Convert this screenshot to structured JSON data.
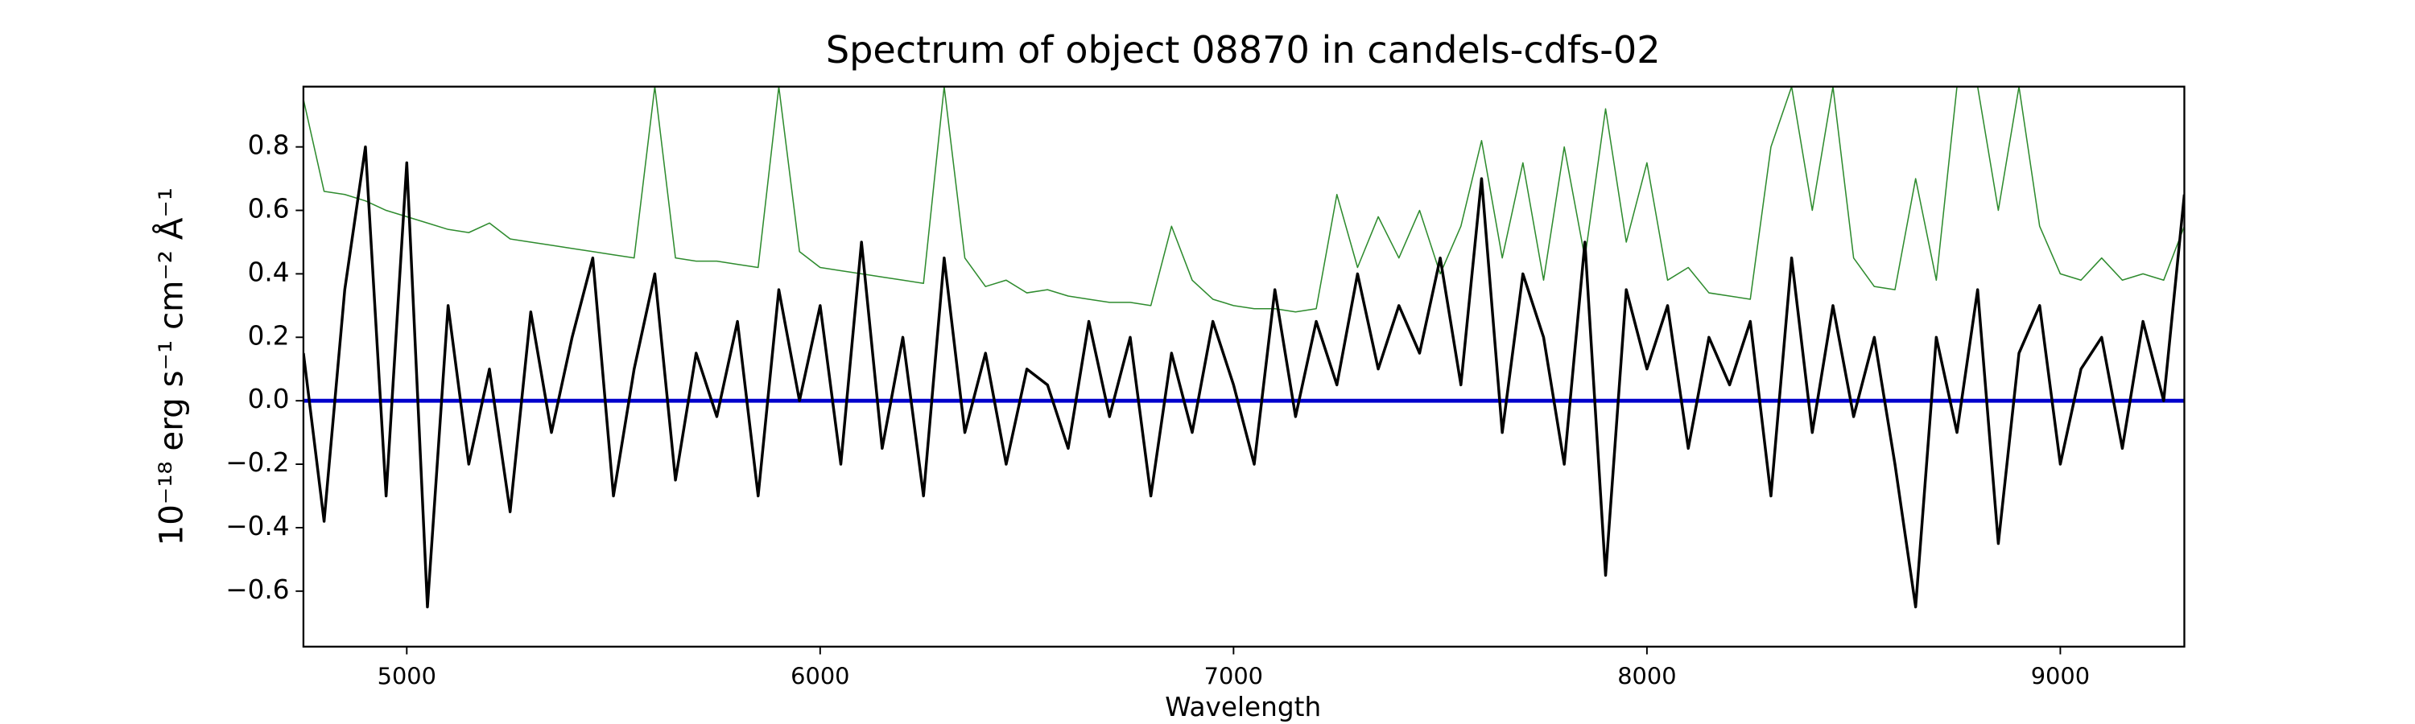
{
  "chart_data": {
    "type": "line",
    "title": "Spectrum of object 08870 in candels-cdfs-02",
    "xlabel": "Wavelength",
    "ylabel": "10⁻¹⁸ erg s⁻¹ cm⁻² Å⁻¹",
    "x": [
      4750,
      4800,
      4850,
      4900,
      4950,
      5000,
      5050,
      5100,
      5150,
      5200,
      5250,
      5300,
      5350,
      5400,
      5450,
      5500,
      5550,
      5600,
      5650,
      5700,
      5750,
      5800,
      5850,
      5900,
      5950,
      6000,
      6050,
      6100,
      6150,
      6200,
      6250,
      6300,
      6350,
      6400,
      6450,
      6500,
      6550,
      6600,
      6650,
      6700,
      6750,
      6800,
      6850,
      6900,
      6950,
      7000,
      7050,
      7100,
      7150,
      7200,
      7250,
      7300,
      7350,
      7400,
      7450,
      7500,
      7550,
      7600,
      7650,
      7700,
      7750,
      7800,
      7850,
      7900,
      7950,
      8000,
      8050,
      8100,
      8150,
      8200,
      8250,
      8300,
      8350,
      8400,
      8450,
      8500,
      8550,
      8600,
      8650,
      8700,
      8750,
      8800,
      8850,
      8900,
      8950,
      9000,
      9050,
      9100,
      9150,
      9200,
      9250,
      9300
    ],
    "series": [
      {
        "color": "#2e8b2e",
        "width": 0.8,
        "values": [
          0.95,
          0.66,
          0.65,
          0.63,
          0.6,
          0.58,
          0.56,
          0.54,
          0.53,
          0.56,
          0.51,
          0.5,
          0.49,
          0.48,
          0.47,
          0.46,
          0.45,
          0.99,
          0.45,
          0.44,
          0.44,
          0.43,
          0.42,
          0.99,
          0.47,
          0.42,
          0.41,
          0.4,
          0.39,
          0.38,
          0.37,
          0.99,
          0.45,
          0.36,
          0.38,
          0.34,
          0.35,
          0.33,
          0.32,
          0.31,
          0.31,
          0.3,
          0.55,
          0.38,
          0.32,
          0.3,
          0.29,
          0.29,
          0.28,
          0.29,
          0.65,
          0.42,
          0.58,
          0.45,
          0.6,
          0.4,
          0.55,
          0.82,
          0.45,
          0.75,
          0.38,
          0.8,
          0.45,
          0.92,
          0.5,
          0.75,
          0.38,
          0.42,
          0.34,
          0.33,
          0.32,
          0.8,
          0.99,
          0.6,
          0.99,
          0.45,
          0.36,
          0.35,
          0.7,
          0.38,
          0.99,
          0.99,
          0.6,
          0.99,
          0.55,
          0.4,
          0.38,
          0.45,
          0.38,
          0.4,
          0.38,
          0.55
        ]
      },
      {
        "color": "#0000cc",
        "width": 2.5,
        "values": [
          0,
          0,
          0,
          0,
          0,
          0,
          0,
          0,
          0,
          0,
          0,
          0,
          0,
          0,
          0,
          0,
          0,
          0,
          0,
          0,
          0,
          0,
          0,
          0,
          0,
          0,
          0,
          0,
          0,
          0,
          0,
          0,
          0,
          0,
          0,
          0,
          0,
          0,
          0,
          0,
          0,
          0,
          0,
          0,
          0,
          0,
          0,
          0,
          0,
          0,
          0,
          0,
          0,
          0,
          0,
          0,
          0,
          0,
          0,
          0,
          0,
          0,
          0,
          0,
          0,
          0,
          0,
          0,
          0,
          0,
          0,
          0,
          0,
          0,
          0,
          0,
          0,
          0,
          0,
          0,
          0,
          0,
          0,
          0,
          0,
          0,
          0,
          0,
          0,
          0,
          0,
          0
        ]
      },
      {
        "color": "#000000",
        "width": 1.8,
        "values": [
          0.15,
          -0.38,
          0.35,
          0.8,
          -0.3,
          0.75,
          -0.65,
          0.3,
          -0.2,
          0.1,
          -0.35,
          0.28,
          -0.1,
          0.2,
          0.45,
          -0.3,
          0.1,
          0.4,
          -0.25,
          0.15,
          -0.05,
          0.25,
          -0.3,
          0.35,
          0,
          0.3,
          -0.2,
          0.5,
          -0.15,
          0.2,
          -0.3,
          0.45,
          -0.1,
          0.15,
          -0.2,
          0.1,
          0.05,
          -0.15,
          0.25,
          -0.05,
          0.2,
          -0.3,
          0.15,
          -0.1,
          0.25,
          0.05,
          -0.2,
          0.35,
          -0.05,
          0.25,
          0.05,
          0.4,
          0.1,
          0.3,
          0.15,
          0.45,
          0.05,
          0.7,
          -0.1,
          0.4,
          0.2,
          -0.2,
          0.5,
          -0.55,
          0.35,
          0.1,
          0.3,
          -0.15,
          0.2,
          0.05,
          0.25,
          -0.3,
          0.45,
          -0.1,
          0.3,
          -0.05,
          0.2,
          -0.2,
          -0.65,
          0.2,
          -0.1,
          0.35,
          -0.45,
          0.15,
          0.3,
          -0.2,
          0.1,
          0.2,
          -0.15,
          0.25,
          0,
          0.65
        ]
      }
    ],
    "xlim": [
      4750,
      9300
    ],
    "ylim": [
      -0.775,
      0.99
    ],
    "xticks": [
      5000,
      6000,
      7000,
      8000,
      9000
    ],
    "yticks": [
      {
        "value": -0.6,
        "label": "−0.6"
      },
      {
        "value": -0.4,
        "label": "−0.4"
      },
      {
        "value": -0.2,
        "label": "−0.2"
      },
      {
        "value": 0,
        "label": "0.0"
      },
      0.2,
      0.4,
      0.6,
      0.8
    ]
  }
}
